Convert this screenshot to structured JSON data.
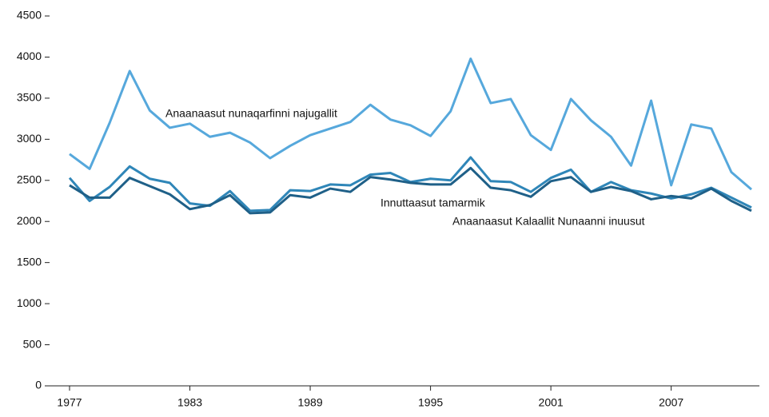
{
  "chart_data": {
    "type": "line",
    "x": [
      1977,
      1978,
      1979,
      1980,
      1981,
      1982,
      1983,
      1984,
      1985,
      1986,
      1987,
      1988,
      1989,
      1990,
      1991,
      1992,
      1993,
      1994,
      1995,
      1996,
      1997,
      1998,
      1999,
      2000,
      2001,
      2002,
      2003,
      2004,
      2005,
      2006,
      2007,
      2008,
      2009,
      2010,
      2011
    ],
    "series": [
      {
        "name": "Anaanaasut nunaqarfinni najugallit",
        "color": "#56a8dc",
        "values": [
          2820,
          2640,
          3200,
          3830,
          3350,
          3140,
          3190,
          3030,
          3080,
          2960,
          2770,
          2920,
          3050,
          3130,
          3210,
          3420,
          3240,
          3170,
          3040,
          3340,
          3980,
          3440,
          3490,
          3050,
          2870,
          3490,
          3230,
          3030,
          2680,
          3470,
          2440,
          3180,
          3130,
          2600,
          2390
        ]
      },
      {
        "name": "Innuttaasut tamarmik",
        "color": "#2f86b8",
        "values": [
          2530,
          2250,
          2420,
          2670,
          2520,
          2470,
          2220,
          2190,
          2370,
          2130,
          2140,
          2380,
          2370,
          2450,
          2440,
          2570,
          2590,
          2480,
          2520,
          2500,
          2780,
          2490,
          2480,
          2360,
          2530,
          2630,
          2360,
          2480,
          2380,
          2340,
          2280,
          2330,
          2410,
          2290,
          2170
        ]
      },
      {
        "name": "Anaanaasut Kalaallit Nunaanni inuusut",
        "color": "#1f6088",
        "values": [
          2440,
          2290,
          2290,
          2530,
          2430,
          2330,
          2150,
          2200,
          2320,
          2100,
          2110,
          2320,
          2290,
          2400,
          2360,
          2540,
          2510,
          2470,
          2450,
          2450,
          2650,
          2410,
          2380,
          2300,
          2490,
          2540,
          2360,
          2420,
          2370,
          2270,
          2310,
          2280,
          2400,
          2250,
          2130
        ]
      }
    ],
    "xlim": [
      1977,
      2011
    ],
    "xticks": [
      1977,
      1983,
      1989,
      1995,
      2001,
      2007
    ],
    "ylim": [
      0,
      4500
    ],
    "yticks": [
      0,
      500,
      1000,
      1500,
      2000,
      2500,
      3000,
      3500,
      4000,
      4500
    ]
  }
}
